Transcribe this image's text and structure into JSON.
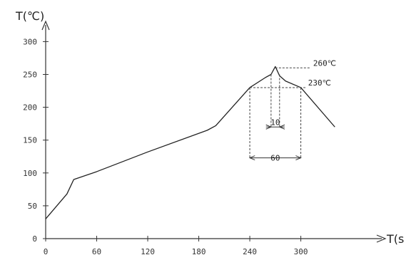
{
  "chart_data": {
    "type": "line",
    "ylabel": "T(℃)",
    "xlabel": "T(s",
    "xlim": [
      0,
      390
    ],
    "ylim": [
      0,
      320
    ],
    "xticks": [
      0,
      60,
      120,
      180,
      240,
      300
    ],
    "yticks": [
      0,
      50,
      100,
      150,
      200,
      250,
      300
    ],
    "series": [
      {
        "x": [
          0,
          25,
          33,
          60,
          120,
          190,
          200,
          240,
          258,
          265,
          270,
          275,
          282,
          300,
          340
        ],
        "y": [
          30,
          68,
          90,
          102,
          132,
          165,
          172,
          230,
          245,
          250,
          262,
          248,
          240,
          230,
          170
        ]
      }
    ],
    "annotations": {
      "peak_label": "260℃",
      "level_label": "230℃",
      "inner_width_label": "10",
      "outer_width_label": "60"
    }
  }
}
